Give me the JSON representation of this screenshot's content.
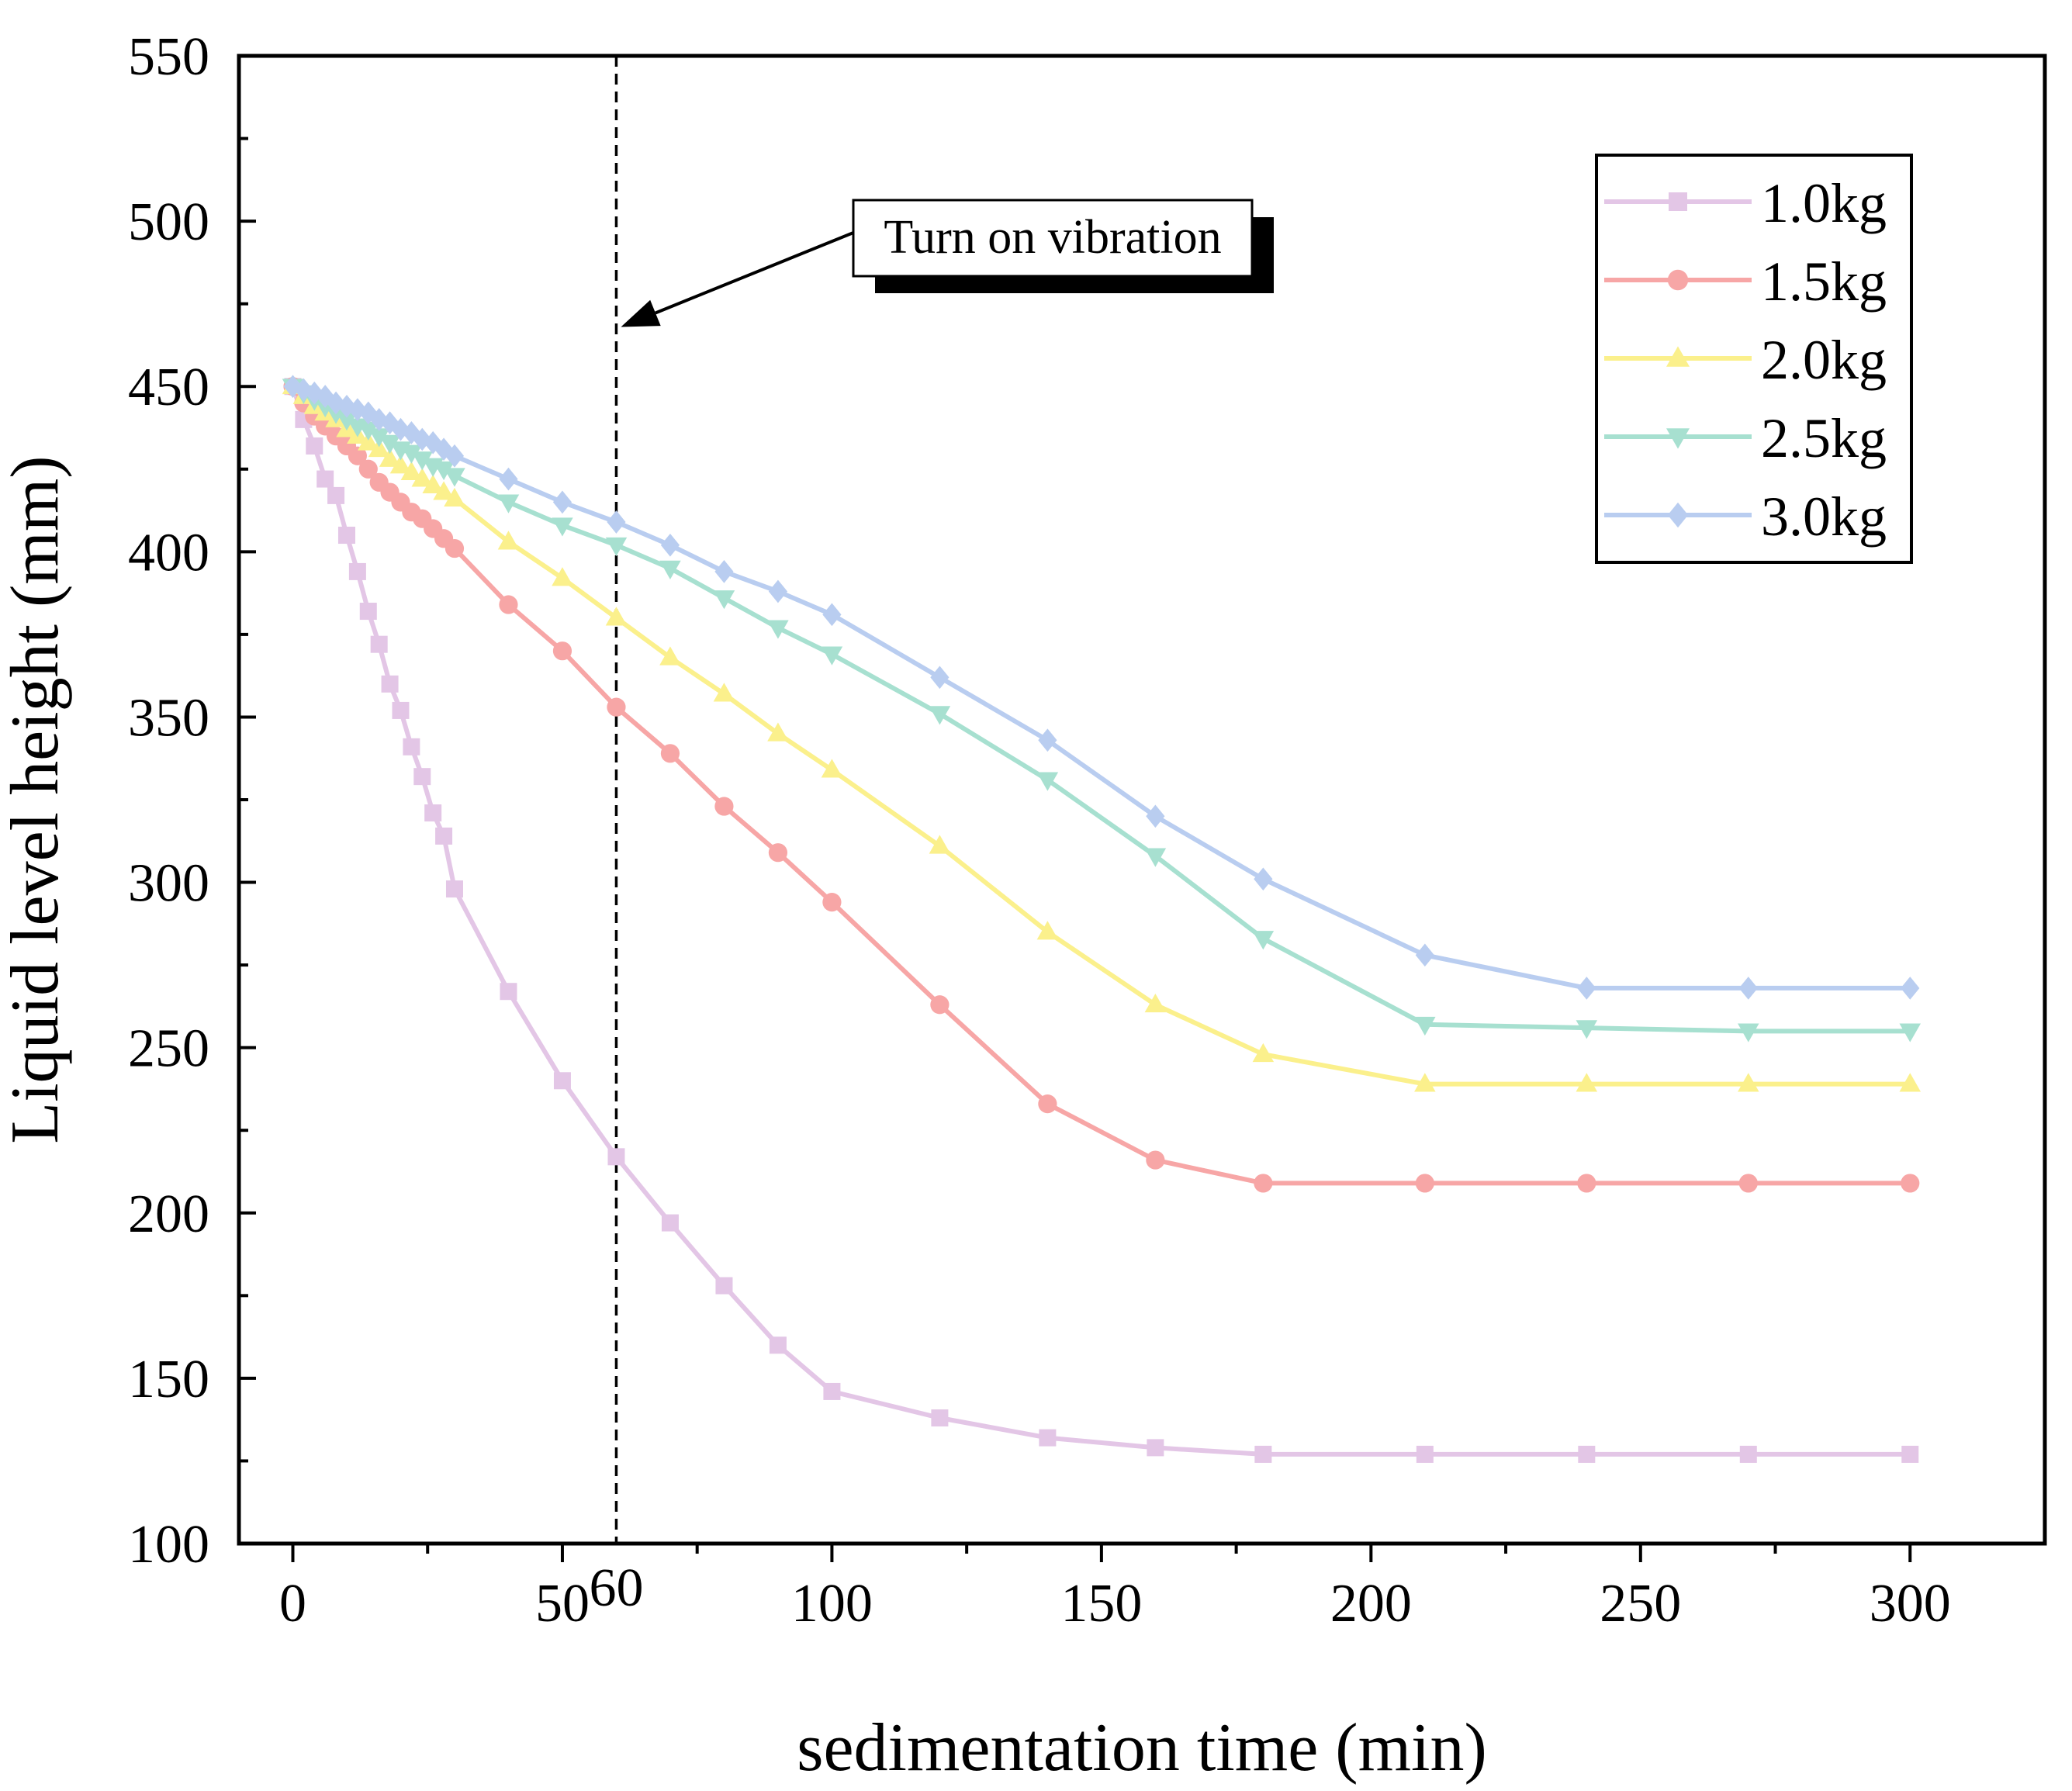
{
  "chart_data": {
    "type": "line",
    "title": "",
    "xlabel": "sedimentation time (min)",
    "ylabel": "Liquid level height (mm)",
    "xlim": [
      -10,
      325
    ],
    "ylim": [
      100,
      550
    ],
    "xticks": [
      0,
      50,
      100,
      150,
      200,
      250,
      300
    ],
    "xtick_labels": [
      "0",
      "50",
      "100",
      "150",
      "200",
      "250",
      "300"
    ],
    "yticks": [
      100,
      150,
      200,
      250,
      300,
      350,
      400,
      450,
      500,
      550
    ],
    "ytick_labels": [
      "100",
      "150",
      "200",
      "250",
      "300",
      "350",
      "400",
      "450",
      "500",
      "550"
    ],
    "vline": {
      "x": 60,
      "label": "60",
      "style": "dashed"
    },
    "annotation": {
      "text": "Turn on vibration",
      "arrow_to": [
        60,
        468
      ]
    },
    "legend_position": "top-right",
    "series": [
      {
        "name": "1.0kg",
        "color": "#e3c6e6",
        "marker": "square",
        "x": [
          0,
          2,
          4,
          6,
          8,
          10,
          12,
          14,
          16,
          18,
          20,
          22,
          24,
          26,
          28,
          30,
          40,
          50,
          60,
          70,
          80,
          90,
          100,
          120,
          140,
          160,
          180,
          210,
          240,
          270,
          300
        ],
        "y": [
          450,
          440,
          432,
          422,
          417,
          405,
          394,
          382,
          372,
          360,
          352,
          341,
          332,
          321,
          314,
          298,
          267,
          240,
          217,
          197,
          178,
          160,
          146,
          138,
          132,
          129,
          127,
          127,
          127,
          127,
          127
        ]
      },
      {
        "name": "1.5kg",
        "color": "#f7a6a6",
        "marker": "circle",
        "x": [
          0,
          2,
          4,
          6,
          8,
          10,
          12,
          14,
          16,
          18,
          20,
          22,
          24,
          26,
          28,
          30,
          40,
          50,
          60,
          70,
          80,
          90,
          100,
          120,
          140,
          160,
          180,
          210,
          240,
          270,
          300
        ],
        "y": [
          450,
          445,
          441,
          438,
          435,
          432,
          429,
          425,
          421,
          418,
          415,
          412,
          410,
          407,
          404,
          401,
          384,
          370,
          353,
          339,
          323,
          309,
          294,
          263,
          233,
          216,
          209,
          209,
          209,
          209,
          209
        ]
      },
      {
        "name": "2.0kg",
        "color": "#fbf08c",
        "marker": "triangle-up",
        "x": [
          0,
          2,
          4,
          6,
          8,
          10,
          12,
          14,
          16,
          18,
          20,
          22,
          24,
          26,
          28,
          30,
          40,
          50,
          60,
          70,
          80,
          90,
          100,
          120,
          140,
          160,
          180,
          210,
          240,
          270,
          300
        ],
        "y": [
          450,
          447,
          444,
          442,
          440,
          437,
          435,
          433,
          431,
          428,
          426,
          424,
          422,
          420,
          418,
          416,
          403,
          392,
          380,
          368,
          357,
          345,
          334,
          311,
          285,
          263,
          248,
          239,
          239,
          239,
          239
        ]
      },
      {
        "name": "2.5kg",
        "color": "#a7e0d0",
        "marker": "triangle-down",
        "x": [
          0,
          2,
          4,
          6,
          8,
          10,
          12,
          14,
          16,
          18,
          20,
          22,
          24,
          26,
          28,
          30,
          40,
          50,
          60,
          70,
          80,
          90,
          100,
          120,
          140,
          160,
          180,
          210,
          240,
          270,
          300
        ],
        "y": [
          450,
          448,
          446,
          444,
          442,
          440,
          438,
          437,
          435,
          433,
          431,
          430,
          428,
          426,
          425,
          423,
          415,
          408,
          402,
          395,
          386,
          377,
          369,
          351,
          331,
          308,
          283,
          257,
          256,
          255,
          255
        ]
      },
      {
        "name": "3.0kg",
        "color": "#b9cdf0",
        "marker": "diamond",
        "x": [
          0,
          2,
          4,
          6,
          8,
          10,
          12,
          14,
          16,
          18,
          20,
          22,
          24,
          26,
          28,
          30,
          40,
          50,
          60,
          70,
          80,
          90,
          100,
          120,
          140,
          160,
          180,
          210,
          240,
          270,
          300
        ],
        "y": [
          450,
          449,
          448,
          447,
          445,
          444,
          443,
          442,
          440,
          439,
          437,
          436,
          434,
          433,
          431,
          429,
          422,
          415,
          409,
          402,
          394,
          388,
          381,
          362,
          343,
          320,
          301,
          278,
          268,
          268,
          268
        ]
      }
    ]
  }
}
